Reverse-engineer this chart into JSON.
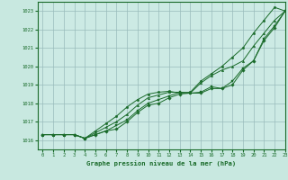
{
  "title": "Graphe pression niveau de la mer (hPa)",
  "bg_color": "#c8e8e0",
  "plot_bg_color": "#cceae4",
  "grid_color": "#99bbbb",
  "line_color": "#1a6b2a",
  "xlim": [
    -0.5,
    23
  ],
  "ylim": [
    1015.5,
    1023.5
  ],
  "yticks": [
    1016,
    1017,
    1018,
    1019,
    1020,
    1021,
    1022,
    1023
  ],
  "xticks": [
    0,
    1,
    2,
    3,
    4,
    5,
    6,
    7,
    8,
    9,
    10,
    11,
    12,
    13,
    14,
    15,
    16,
    17,
    18,
    19,
    20,
    21,
    22,
    23
  ],
  "series": [
    [
      1016.3,
      1016.3,
      1016.3,
      1016.3,
      1016.1,
      1016.3,
      1016.5,
      1016.6,
      1017.0,
      1017.5,
      1017.9,
      1018.0,
      1018.3,
      1018.5,
      1018.55,
      1018.55,
      1018.8,
      1018.8,
      1019.0,
      1019.8,
      1020.3,
      1021.4,
      1022.1,
      1023.0
    ],
    [
      1016.3,
      1016.3,
      1016.3,
      1016.3,
      1016.1,
      1016.3,
      1016.5,
      1016.8,
      1017.1,
      1017.6,
      1018.0,
      1018.2,
      1018.4,
      1018.6,
      1018.55,
      1018.6,
      1018.9,
      1018.8,
      1019.2,
      1019.9,
      1020.3,
      1021.5,
      1022.2,
      1023.0
    ],
    [
      1016.3,
      1016.3,
      1016.3,
      1016.3,
      1016.1,
      1016.4,
      1016.7,
      1017.0,
      1017.4,
      1017.9,
      1018.3,
      1018.45,
      1018.6,
      1018.6,
      1018.55,
      1019.1,
      1019.5,
      1019.8,
      1020.0,
      1020.3,
      1021.1,
      1021.8,
      1022.5,
      1023.0
    ],
    [
      1016.3,
      1016.3,
      1016.3,
      1016.3,
      1016.1,
      1016.5,
      1016.9,
      1017.3,
      1017.8,
      1018.2,
      1018.5,
      1018.6,
      1018.65,
      1018.55,
      1018.6,
      1019.2,
      1019.6,
      1020.0,
      1020.5,
      1021.0,
      1021.8,
      1022.5,
      1023.2,
      1023.0
    ]
  ]
}
